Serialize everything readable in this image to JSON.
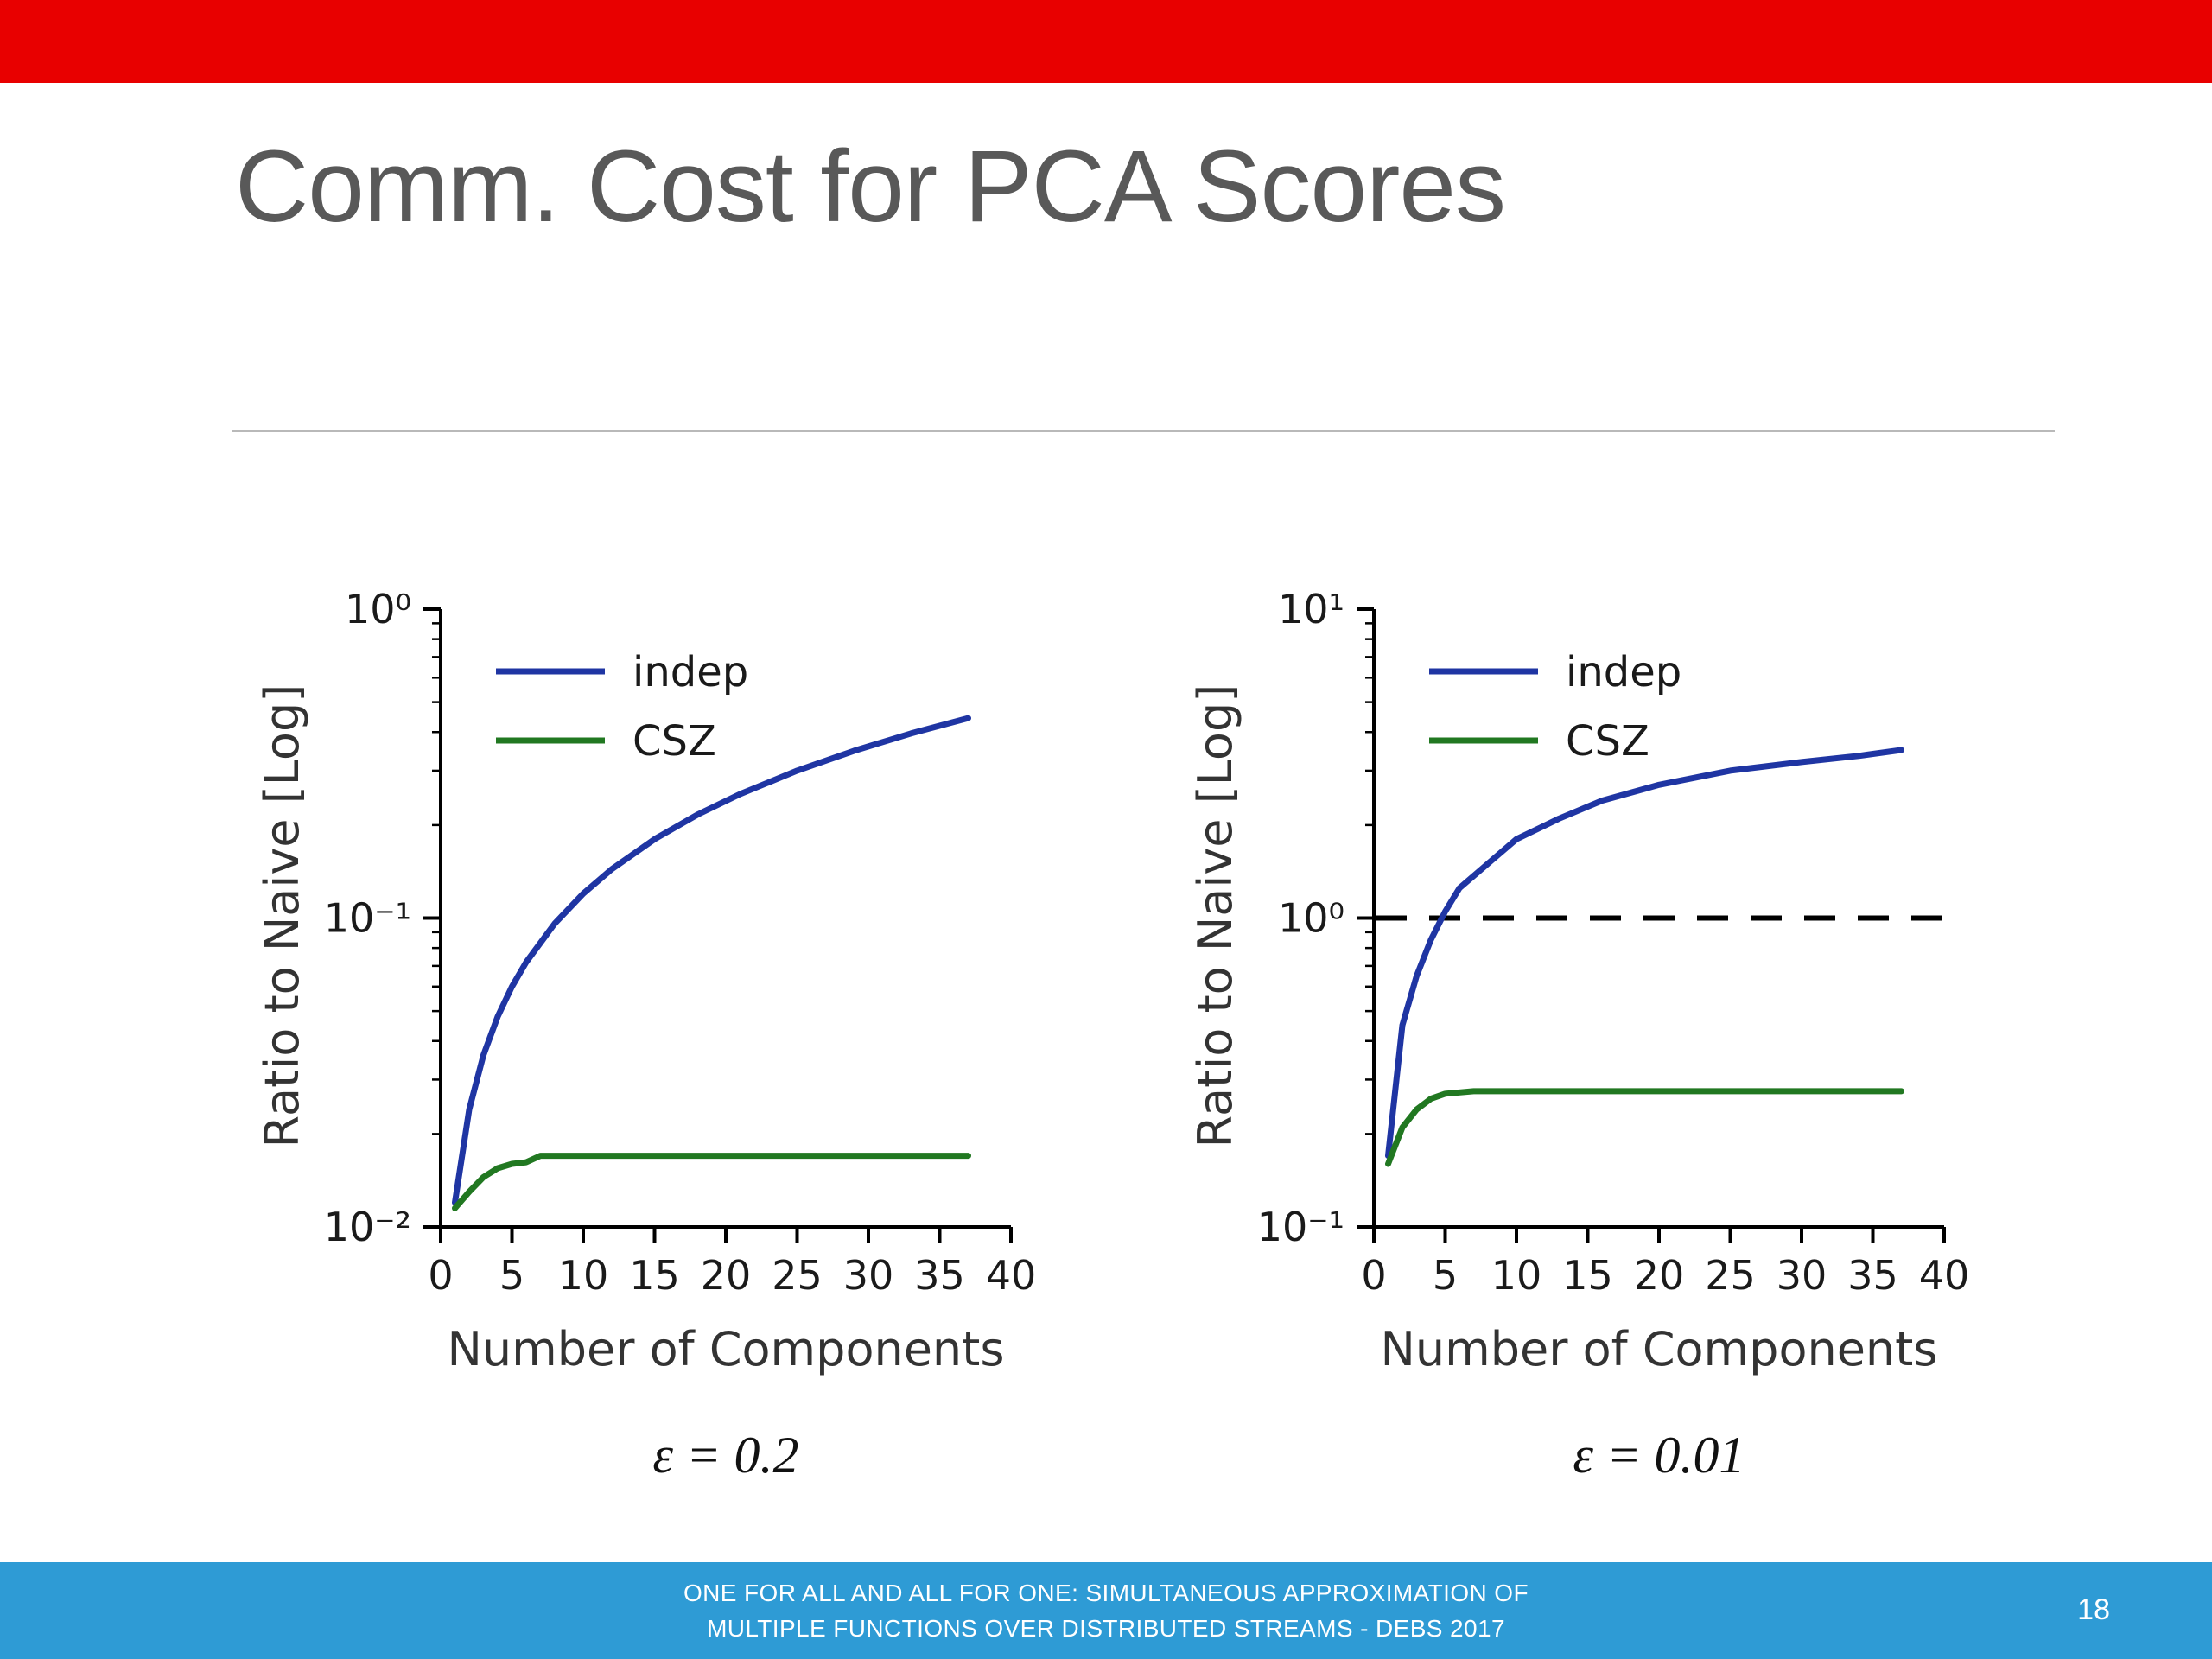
{
  "slide": {
    "title": "Comm. Cost for PCA Scores",
    "page_number": "18",
    "footer": {
      "line1": "ONE FOR ALL AND ALL FOR ONE: SIMULTANEOUS APPROXIMATION OF",
      "line2": "MULTIPLE FUNCTIONS OVER DISTRIBUTED STREAMS - DEBS 2017"
    }
  },
  "colors": {
    "top_bar": "#E80000",
    "footer_bar": "#2E9BD5",
    "title_text": "#595959",
    "indep": "#1F35A3",
    "csz": "#217821",
    "dashed_line": "#000000"
  },
  "chart_data": [
    {
      "type": "line",
      "caption": "ε = 0.2",
      "xlabel": "Number of Components",
      "ylabel": "Ratio to Naive [Log]",
      "xlim": [
        0,
        40
      ],
      "xticks": [
        0,
        5,
        10,
        15,
        20,
        25,
        30,
        35,
        40
      ],
      "yscale": "log",
      "ylim": [
        0.01,
        1.0
      ],
      "yticks": [
        {
          "v": 1.0,
          "label": "10⁰"
        },
        {
          "v": 0.1,
          "label": "10⁻¹"
        },
        {
          "v": 0.01,
          "label": "10⁻²"
        }
      ],
      "grid": false,
      "legend_position": "upper-left",
      "hline": null,
      "series": [
        {
          "name": "indep",
          "color_key": "indep",
          "x": [
            1,
            2,
            3,
            4,
            5,
            6,
            8,
            10,
            12,
            15,
            18,
            21,
            25,
            29,
            33,
            37
          ],
          "y": [
            0.012,
            0.024,
            0.036,
            0.048,
            0.06,
            0.072,
            0.096,
            0.12,
            0.144,
            0.18,
            0.216,
            0.252,
            0.3,
            0.348,
            0.396,
            0.444
          ]
        },
        {
          "name": "CSZ",
          "color_key": "csz",
          "x": [
            1,
            2,
            3,
            4,
            5,
            6,
            7,
            10,
            15,
            20,
            25,
            30,
            37
          ],
          "y": [
            0.0115,
            0.013,
            0.0145,
            0.0155,
            0.016,
            0.0162,
            0.017,
            0.017,
            0.017,
            0.017,
            0.017,
            0.017,
            0.017
          ]
        }
      ]
    },
    {
      "type": "line",
      "caption": "ε = 0.01",
      "xlabel": "Number of Components",
      "ylabel": "Ratio to Naive [Log]",
      "xlim": [
        0,
        40
      ],
      "xticks": [
        0,
        5,
        10,
        15,
        20,
        25,
        30,
        35,
        40
      ],
      "yscale": "log",
      "ylim": [
        0.1,
        10.0
      ],
      "yticks": [
        {
          "v": 10.0,
          "label": "10¹"
        },
        {
          "v": 1.0,
          "label": "10⁰"
        },
        {
          "v": 0.1,
          "label": "10⁻¹"
        }
      ],
      "grid": false,
      "legend_position": "upper-left",
      "hline": 1.0,
      "series": [
        {
          "name": "indep",
          "color_key": "indep",
          "x": [
            1,
            2,
            3,
            4,
            5,
            6,
            8,
            10,
            13,
            16,
            20,
            25,
            30,
            34,
            37
          ],
          "y": [
            0.17,
            0.45,
            0.65,
            0.85,
            1.05,
            1.25,
            1.5,
            1.8,
            2.1,
            2.4,
            2.7,
            3.0,
            3.2,
            3.35,
            3.5
          ]
        },
        {
          "name": "CSZ",
          "color_key": "csz",
          "x": [
            1,
            2,
            3,
            4,
            5,
            7,
            10,
            15,
            20,
            25,
            30,
            37
          ],
          "y": [
            0.16,
            0.21,
            0.24,
            0.26,
            0.27,
            0.275,
            0.275,
            0.275,
            0.275,
            0.275,
            0.275,
            0.275
          ]
        }
      ]
    }
  ]
}
